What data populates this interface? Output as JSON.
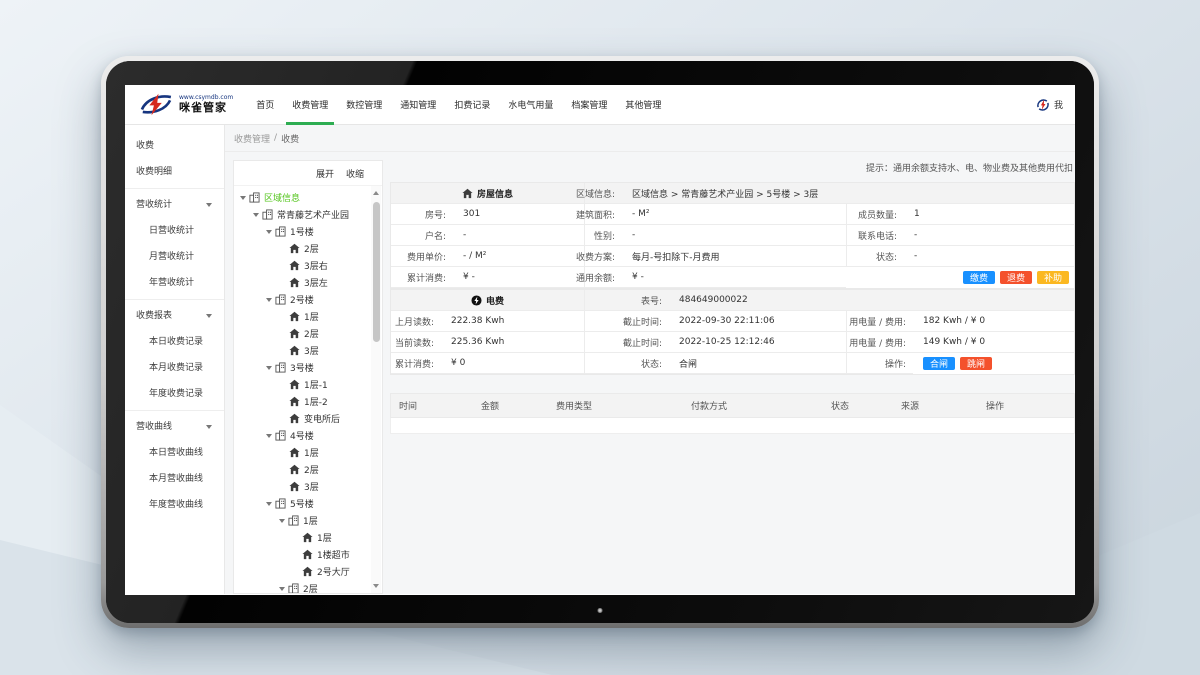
{
  "colors": {
    "green": "#2ead52",
    "tree_green": "#52c41a",
    "blue": "#1890ff",
    "red": "#f4512c",
    "yellow": "#fbb822"
  },
  "navbar": {
    "logo": {
      "url": "www.csymdb.com",
      "brand": "咪雀管家"
    },
    "items": [
      {
        "label": "首页",
        "active": false
      },
      {
        "label": "收费管理",
        "active": true
      },
      {
        "label": "数控管理",
        "active": false
      },
      {
        "label": "通知管理",
        "active": false
      },
      {
        "label": "扣费记录",
        "active": false
      },
      {
        "label": "水电气用量",
        "active": false
      },
      {
        "label": "档案管理",
        "active": false
      },
      {
        "label": "其他管理",
        "active": false
      }
    ],
    "user_label": "我"
  },
  "sidebar": {
    "groups": [
      {
        "header": null,
        "items": [
          "收费",
          "收费明细"
        ]
      },
      {
        "header": "营收统计",
        "items": [
          "日营收统计",
          "月营收统计",
          "年营收统计"
        ]
      },
      {
        "header": "收费报表",
        "items": [
          "本日收费记录",
          "本月收费记录",
          "年度收费记录"
        ]
      },
      {
        "header": "营收曲线",
        "items": [
          "本日营收曲线",
          "本月营收曲线",
          "年度营收曲线"
        ]
      }
    ]
  },
  "breadcrumb": {
    "items": [
      "收费管理",
      "收费"
    ],
    "separator": "/"
  },
  "tree": {
    "expand_label": "展开",
    "collapse_label": "收缩",
    "nodes": [
      {
        "d": 0,
        "t": "building",
        "exp": true,
        "green": true,
        "label": "区域信息"
      },
      {
        "d": 1,
        "t": "building",
        "exp": true,
        "label": "常青藤艺术产业园"
      },
      {
        "d": 2,
        "t": "building",
        "exp": true,
        "label": "1号楼"
      },
      {
        "d": 3,
        "t": "house",
        "label": "2层"
      },
      {
        "d": 3,
        "t": "house",
        "label": "3层右"
      },
      {
        "d": 3,
        "t": "house",
        "label": "3层左"
      },
      {
        "d": 2,
        "t": "building",
        "exp": true,
        "label": "2号楼"
      },
      {
        "d": 3,
        "t": "house",
        "label": "1层"
      },
      {
        "d": 3,
        "t": "house",
        "label": "2层"
      },
      {
        "d": 3,
        "t": "house",
        "label": "3层"
      },
      {
        "d": 2,
        "t": "building",
        "exp": true,
        "label": "3号楼"
      },
      {
        "d": 3,
        "t": "house",
        "label": "1层-1"
      },
      {
        "d": 3,
        "t": "house",
        "label": "1层-2"
      },
      {
        "d": 3,
        "t": "house",
        "label": "变电所后"
      },
      {
        "d": 2,
        "t": "building",
        "exp": true,
        "label": "4号楼"
      },
      {
        "d": 3,
        "t": "house",
        "label": "1层"
      },
      {
        "d": 3,
        "t": "house",
        "label": "2层"
      },
      {
        "d": 3,
        "t": "house",
        "label": "3层"
      },
      {
        "d": 2,
        "t": "building",
        "exp": true,
        "label": "5号楼"
      },
      {
        "d": 3,
        "t": "building",
        "exp": true,
        "label": "1层"
      },
      {
        "d": 4,
        "t": "house",
        "label": "1层"
      },
      {
        "d": 4,
        "t": "house",
        "label": "1楼超市"
      },
      {
        "d": 4,
        "t": "house",
        "label": "2号大厅"
      },
      {
        "d": 3,
        "t": "building",
        "exp": true,
        "label": "2层"
      }
    ]
  },
  "hint": "提示：通用余额支持水、电、物业费及其他费用代扣",
  "house_info": {
    "name": "house-info",
    "title": "房屋信息",
    "header_label": "区域信息",
    "header_value": "区域信息 > 常青藤艺术产业园 > 5号楼 > 3层",
    "rows": [
      {
        "cells": [
          {
            "l": "房号",
            "v": "301"
          },
          {
            "l": "建筑面积",
            "v": "- M²"
          },
          {
            "l": "成员数量",
            "v": "1"
          }
        ]
      },
      {
        "cells": [
          {
            "l": "户名",
            "v": "-"
          },
          {
            "l": "性别",
            "v": "-"
          },
          {
            "l": "联系电话",
            "v": "-"
          }
        ]
      },
      {
        "cells": [
          {
            "l": "费用单价",
            "v": "- / M²"
          },
          {
            "l": "收费方案",
            "v": "每月-号扣除下-月费用"
          },
          {
            "l": "状态",
            "v": "-"
          }
        ]
      },
      {
        "cells": [
          {
            "l": "累计消费",
            "v": "¥ -"
          },
          {
            "l": "通用余额",
            "v": "¥ -"
          }
        ],
        "buttons": [
          {
            "label": "缴费",
            "type": "blue"
          },
          {
            "label": "退费",
            "type": "red"
          },
          {
            "label": "补助",
            "type": "yellow"
          }
        ],
        "buttons_align": "right"
      }
    ]
  },
  "electric": {
    "name": "electric",
    "title": "电费",
    "header_label": "表号",
    "header_value": "484649000022",
    "rows": [
      {
        "cells": [
          {
            "l": "上月读数",
            "v": "222.38 Kwh"
          },
          {
            "l": "截止时间",
            "v": "2022-09-30 22:11:06"
          },
          {
            "l": "用电量 / 费用",
            "v": "182 Kwh / ¥ 0"
          }
        ]
      },
      {
        "cells": [
          {
            "l": "当前读数",
            "v": "225.36 Kwh"
          },
          {
            "l": "截止时间",
            "v": "2022-10-25 12:12:46"
          },
          {
            "l": "用电量 / 费用",
            "v": "149 Kwh / ¥ 0"
          }
        ]
      },
      {
        "cells": [
          {
            "l": "累计消费",
            "v": "¥ 0"
          },
          {
            "l": "状态",
            "v": "合闸"
          }
        ],
        "op_label": "操作",
        "buttons": [
          {
            "label": "合闸",
            "type": "blue"
          },
          {
            "label": "跳闸",
            "type": "red"
          }
        ]
      }
    ]
  },
  "history": {
    "headers": [
      "时间",
      "金额",
      "费用类型",
      "付款方式",
      "状态",
      "来源",
      "操作"
    ]
  }
}
